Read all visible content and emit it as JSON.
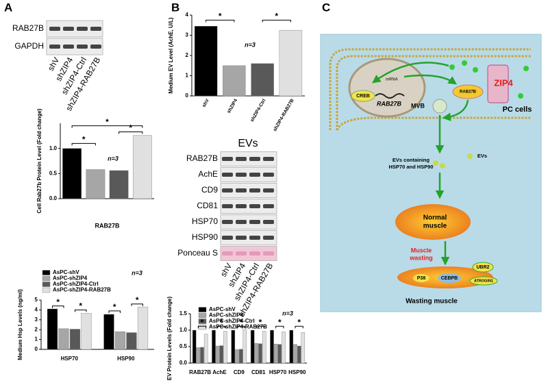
{
  "panels": {
    "a": "A",
    "b": "B",
    "c": "C"
  },
  "blot_a": {
    "rows": [
      "RAB27B",
      "GAPDH"
    ],
    "lanes": [
      "shV",
      "shZIP4",
      "shZIP4-Ctrl",
      "shZIP4-RAB27B"
    ]
  },
  "blot_b": {
    "title": "EVs",
    "rows": [
      "RAB27B",
      "AchE",
      "CD9",
      "CD81",
      "HSP70",
      "HSP90",
      "Ponceau S"
    ],
    "lanes": [
      "shV",
      "shZIP4",
      "shZIP4-Ctrl",
      "shZIP4-RAB27B"
    ]
  },
  "chart_data": [
    {
      "type": "bar",
      "y_label": "Cell Rab27b Protein Level (Fold change)",
      "x_label": "RAB27B",
      "values": [
        1.0,
        0.58,
        0.56,
        1.26
      ],
      "colors": [
        "#000000",
        "#a6a6a6",
        "#595959",
        "#e0e0e0"
      ],
      "ylim": [
        0,
        1.5
      ],
      "yticks": [
        {
          "value": 0,
          "label": "0.0"
        },
        {
          "value": 0.5,
          "label": "0.5"
        },
        {
          "value": 1,
          "label": "1.0"
        }
      ],
      "annotation": "n=3",
      "significance": [
        "*",
        "*",
        "*"
      ]
    },
    {
      "type": "bar",
      "y_label": "Medium Hsp Levels (ng/ml)",
      "categories": [
        "HSP70",
        "HSP90"
      ],
      "series": [
        {
          "name": "AsPC-shV",
          "color": "#000000",
          "values": [
            4.1,
            3.55
          ]
        },
        {
          "name": "AsPC-shZIP4",
          "color": "#a6a6a6",
          "values": [
            2.1,
            1.8
          ]
        },
        {
          "name": "AsPC-shZIP4-Ctrl",
          "color": "#595959",
          "values": [
            2.05,
            1.7
          ]
        },
        {
          "name": "AsPC-shZIP4-RAB27B",
          "color": "#e0e0e0",
          "values": [
            3.65,
            4.3
          ]
        }
      ],
      "ylim": [
        0,
        5
      ],
      "yticks": [
        0,
        1,
        2,
        3,
        4,
        5
      ],
      "annotation": "n=3",
      "significance": [
        "*",
        "*",
        "*",
        "*"
      ]
    },
    {
      "type": "bar",
      "y_label": "Medium EV Level (AchE, U/L)",
      "categories": [
        "shV",
        "shZIP4",
        "shZIP4-Ctrl",
        "shZIP4-RAB27B"
      ],
      "values": [
        3.45,
        1.5,
        1.6,
        3.25
      ],
      "colors": [
        "#000000",
        "#a6a6a6",
        "#595959",
        "#e0e0e0"
      ],
      "ylim": [
        0,
        4
      ],
      "yticks": [
        0,
        1,
        2,
        3,
        4
      ],
      "annotation": "n=3",
      "significance": [
        "*",
        "*"
      ]
    },
    {
      "type": "bar",
      "y_label": "EV Protein Levels (Fold change)",
      "categories": [
        "RAB27B",
        "AchE",
        "CD9",
        "CD81",
        "HSP70",
        "HSP90"
      ],
      "series": [
        {
          "name": "AsPC-shV",
          "color": "#000000",
          "values": [
            1,
            1,
            1,
            1,
            1,
            1
          ]
        },
        {
          "name": "AsPC-shZIP4",
          "color": "#a6a6a6",
          "values": [
            0.47,
            0.52,
            0.41,
            0.6,
            0.58,
            0.57
          ]
        },
        {
          "name": "AsPC-shZIP4-Ctrl",
          "color": "#595959",
          "values": [
            0.48,
            0.53,
            0.42,
            0.59,
            0.57,
            0.52
          ]
        },
        {
          "name": "AsPC-shZIP4-RAB27B",
          "color": "#e0e0e0",
          "values": [
            0.88,
            0.97,
            1.02,
            0.97,
            0.95,
            0.93
          ]
        }
      ],
      "ylim": [
        0,
        1.5
      ],
      "yticks": [
        {
          "value": 0,
          "label": "0.0"
        },
        {
          "value": 0.5,
          "label": "0.5"
        },
        {
          "value": 1,
          "label": "1.0"
        },
        {
          "value": 1.5,
          "label": "1.5"
        }
      ],
      "annotation": "n=3",
      "significance": [
        "*",
        "*",
        "*",
        "*",
        "*",
        "*"
      ]
    }
  ],
  "diagram": {
    "zip4": "ZIP4",
    "pc_cells": "PC cells",
    "creb": "CREB",
    "mrna": "mRNA",
    "rab27b_gene": "RAB27B",
    "rab27b_protein": "RAB27B",
    "mvb": "MVB",
    "evs_lines": [
      "EVs containing",
      "HSP70 and HSP90"
    ],
    "evs": "EVs",
    "normal_muscle": [
      "Normal",
      "muscle"
    ],
    "muscle_wasting": [
      "Muscle",
      "wasting"
    ],
    "p38": "P38",
    "cebpb": "CEBPB",
    "ubr2": "UBR2",
    "atrogin1": "ATROGIN1",
    "wasting_muscle": "Wasting muscle"
  }
}
